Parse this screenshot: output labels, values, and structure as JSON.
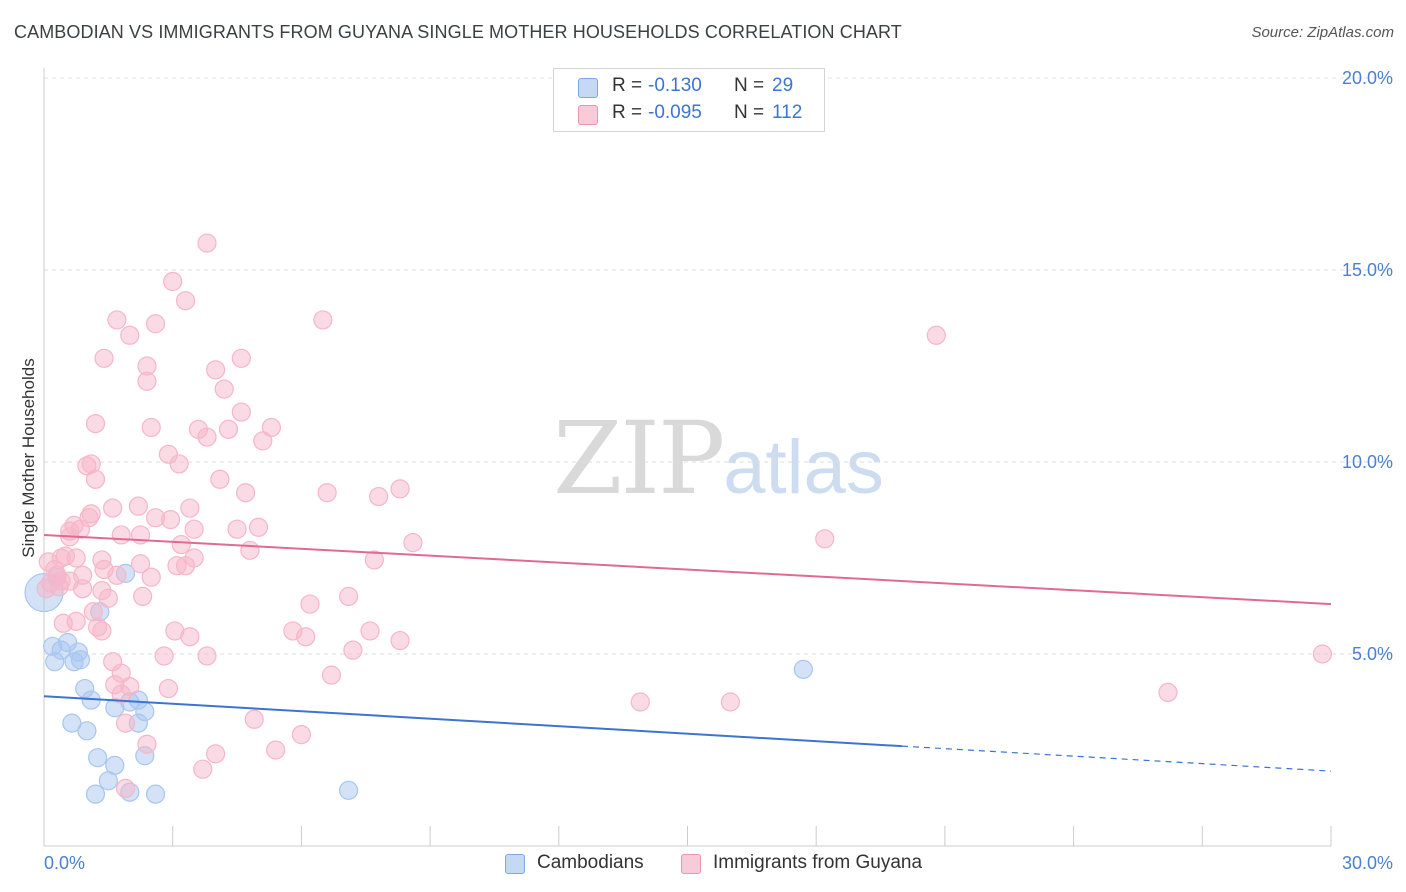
{
  "title": "CAMBODIAN VS IMMIGRANTS FROM GUYANA SINGLE MOTHER HOUSEHOLDS CORRELATION CHART",
  "source": "Source: ZipAtlas.com",
  "watermark": {
    "part1": "ZIP",
    "part2": "atlas"
  },
  "legend": {
    "rows": [
      {
        "r_label": "R =",
        "r_value": "-0.130",
        "n_label": "N =",
        "n_value": "29",
        "color": "#a8c6ef"
      },
      {
        "r_label": "R =",
        "r_value": "-0.095",
        "n_label": "N =",
        "n_value": "112",
        "color": "#f6b6c9"
      }
    ]
  },
  "bottom_legend": [
    {
      "label": "Cambodians",
      "color": "#a8c6ef"
    },
    {
      "label": "Immigrants from Guyana",
      "color": "#f6b6c9"
    }
  ],
  "chart_data": {
    "type": "scatter",
    "ylabel": "Single Mother Households",
    "xlabel": "",
    "xlim": [
      0,
      30
    ],
    "ylim": [
      0,
      20
    ],
    "x_tick_labels": [
      "0.0%",
      "30.0%"
    ],
    "y_tick_labels": [
      {
        "value": 5,
        "label": "5.0%"
      },
      {
        "value": 10,
        "label": "10.0%"
      },
      {
        "value": 15,
        "label": "15.0%"
      },
      {
        "value": 20,
        "label": "20.0%"
      }
    ],
    "grid": true,
    "series": [
      {
        "name": "Cambodians",
        "color": "#3d74d0",
        "fill": "#a8c6ef",
        "trend": {
          "x0": 0,
          "y0": 3.9,
          "x1": 20,
          "y1": 2.6,
          "dash_to_x": 30,
          "dash_to_y": 1.95
        },
        "points": [
          [
            0.0,
            6.6
          ],
          [
            0.2,
            5.2
          ],
          [
            0.25,
            4.8
          ],
          [
            0.4,
            5.1
          ],
          [
            0.55,
            5.3
          ],
          [
            0.7,
            4.8
          ],
          [
            0.8,
            5.05
          ],
          [
            0.85,
            4.85
          ],
          [
            0.95,
            4.1
          ],
          [
            1.1,
            3.8
          ],
          [
            0.65,
            3.2
          ],
          [
            1.0,
            3.0
          ],
          [
            1.3,
            6.1
          ],
          [
            1.9,
            7.1
          ],
          [
            1.65,
            3.6
          ],
          [
            2.2,
            3.2
          ],
          [
            2.35,
            3.5
          ],
          [
            1.25,
            2.3
          ],
          [
            1.65,
            2.1
          ],
          [
            2.0,
            3.75
          ],
          [
            1.5,
            1.7
          ],
          [
            1.2,
            1.35
          ],
          [
            2.0,
            1.4
          ],
          [
            2.6,
            1.35
          ],
          [
            2.35,
            2.35
          ],
          [
            7.1,
            1.45
          ],
          [
            17.7,
            4.6
          ],
          [
            0.3,
            7.0
          ],
          [
            2.2,
            3.8
          ]
        ]
      },
      {
        "name": "Immigrants from Guyana",
        "color": "#e06a94",
        "fill": "#f6b6c9",
        "trend": {
          "x0": 0,
          "y0": 8.1,
          "x1": 30,
          "y1": 6.3
        },
        "points": [
          [
            3.8,
            15.7
          ],
          [
            3.0,
            14.7
          ],
          [
            3.3,
            14.2
          ],
          [
            1.7,
            13.7
          ],
          [
            2.6,
            13.6
          ],
          [
            6.5,
            13.7
          ],
          [
            2.0,
            13.3
          ],
          [
            1.4,
            12.7
          ],
          [
            4.6,
            12.7
          ],
          [
            2.4,
            12.5
          ],
          [
            4.0,
            12.4
          ],
          [
            2.4,
            12.1
          ],
          [
            4.2,
            11.9
          ],
          [
            4.6,
            11.3
          ],
          [
            1.2,
            11.0
          ],
          [
            2.5,
            10.9
          ],
          [
            3.6,
            10.85
          ],
          [
            4.3,
            10.85
          ],
          [
            5.3,
            10.9
          ],
          [
            3.8,
            10.65
          ],
          [
            5.1,
            10.55
          ],
          [
            2.9,
            10.2
          ],
          [
            1.0,
            9.9
          ],
          [
            1.1,
            9.95
          ],
          [
            3.15,
            9.95
          ],
          [
            1.2,
            9.55
          ],
          [
            4.1,
            9.55
          ],
          [
            6.6,
            9.2
          ],
          [
            4.7,
            9.2
          ],
          [
            7.8,
            9.1
          ],
          [
            8.3,
            9.3
          ],
          [
            1.6,
            8.8
          ],
          [
            2.2,
            8.85
          ],
          [
            1.1,
            8.65
          ],
          [
            1.05,
            8.55
          ],
          [
            3.4,
            8.8
          ],
          [
            2.6,
            8.55
          ],
          [
            0.7,
            8.35
          ],
          [
            0.6,
            8.2
          ],
          [
            0.85,
            8.25
          ],
          [
            0.6,
            8.05
          ],
          [
            2.95,
            8.5
          ],
          [
            3.5,
            8.25
          ],
          [
            4.5,
            8.25
          ],
          [
            5.0,
            8.3
          ],
          [
            1.8,
            8.1
          ],
          [
            3.2,
            7.85
          ],
          [
            4.8,
            7.7
          ],
          [
            8.6,
            7.9
          ],
          [
            0.4,
            7.5
          ],
          [
            0.5,
            7.55
          ],
          [
            0.75,
            7.5
          ],
          [
            0.1,
            7.4
          ],
          [
            1.35,
            7.45
          ],
          [
            3.5,
            7.5
          ],
          [
            2.25,
            7.35
          ],
          [
            0.25,
            7.2
          ],
          [
            0.3,
            7.05
          ],
          [
            0.4,
            6.9
          ],
          [
            0.6,
            6.9
          ],
          [
            0.15,
            6.85
          ],
          [
            0.05,
            6.7
          ],
          [
            0.35,
            6.75
          ],
          [
            0.9,
            7.05
          ],
          [
            1.7,
            7.05
          ],
          [
            2.5,
            7.0
          ],
          [
            1.4,
            7.2
          ],
          [
            3.1,
            7.3
          ],
          [
            3.3,
            7.3
          ],
          [
            7.7,
            7.45
          ],
          [
            0.9,
            6.7
          ],
          [
            1.35,
            6.65
          ],
          [
            2.3,
            6.5
          ],
          [
            7.1,
            6.5
          ],
          [
            1.15,
            6.1
          ],
          [
            6.2,
            6.3
          ],
          [
            1.25,
            5.7
          ],
          [
            1.35,
            5.6
          ],
          [
            0.45,
            5.8
          ],
          [
            0.75,
            5.85
          ],
          [
            5.8,
            5.6
          ],
          [
            7.6,
            5.6
          ],
          [
            6.1,
            5.45
          ],
          [
            3.4,
            5.45
          ],
          [
            8.3,
            5.35
          ],
          [
            7.2,
            5.1
          ],
          [
            3.8,
            4.95
          ],
          [
            1.6,
            4.8
          ],
          [
            1.8,
            4.5
          ],
          [
            6.7,
            4.45
          ],
          [
            1.65,
            4.2
          ],
          [
            2.0,
            4.15
          ],
          [
            2.9,
            4.1
          ],
          [
            1.8,
            3.95
          ],
          [
            13.9,
            3.75
          ],
          [
            16.0,
            3.75
          ],
          [
            26.2,
            4.0
          ],
          [
            29.8,
            5.0
          ],
          [
            4.9,
            3.3
          ],
          [
            1.9,
            3.2
          ],
          [
            6.0,
            2.9
          ],
          [
            2.4,
            2.65
          ],
          [
            5.4,
            2.5
          ],
          [
            4.0,
            2.4
          ],
          [
            3.7,
            2.0
          ],
          [
            1.9,
            1.5
          ],
          [
            20.8,
            13.3
          ],
          [
            18.2,
            8.0
          ],
          [
            2.25,
            8.1
          ],
          [
            1.5,
            6.45
          ],
          [
            2.8,
            4.95
          ],
          [
            3.05,
            5.6
          ]
        ]
      }
    ]
  }
}
